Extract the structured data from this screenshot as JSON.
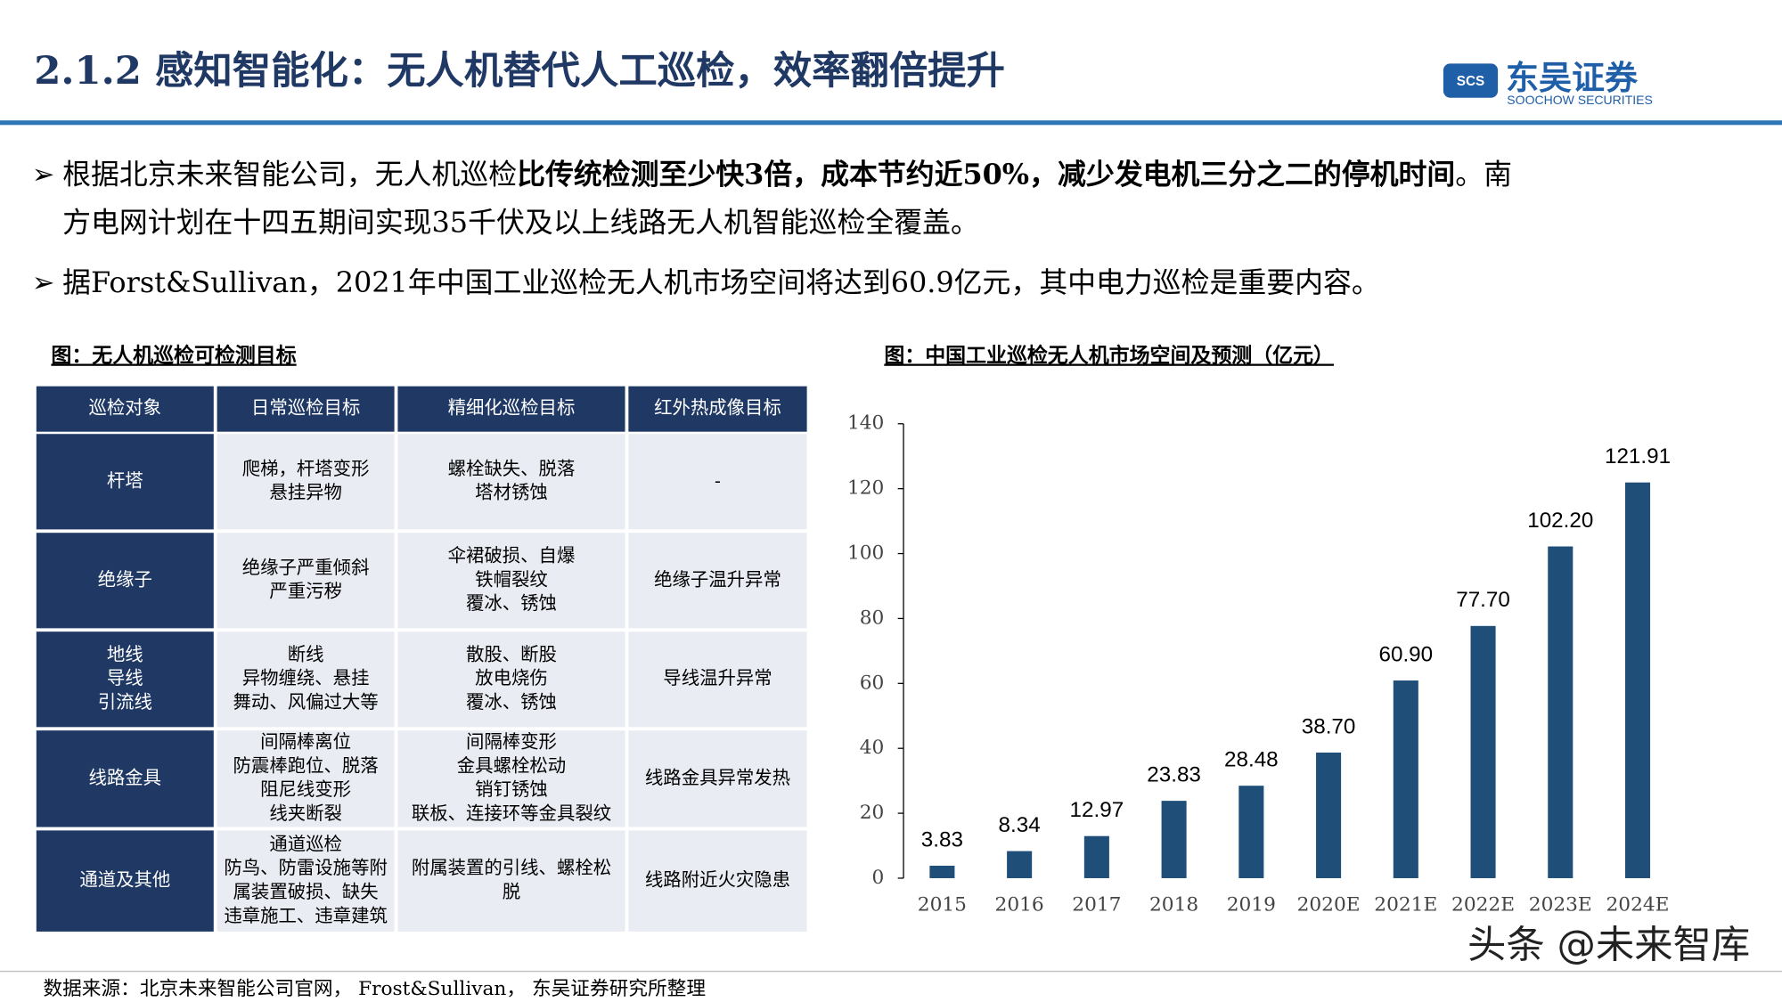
{
  "header": {
    "title": "2.1.2 感知智能化：无人机替代人工巡检，效率翻倍提升"
  },
  "logo": {
    "icon": "SCS",
    "name": "东吴证券",
    "english": "SOOCHOW SECURITIES"
  },
  "bullets": [
    {
      "lines": [
        [
          {
            "text": "根据北京未来智能公司，无人机巡检",
            "bold": false
          },
          {
            "text": "比传统检测至少快3倍，成本节约近50%，减少发电机三分之二的停机时间",
            "bold": true
          },
          {
            "text": "。南",
            "bold": false
          }
        ],
        [
          {
            "text": "方电网计划在十四五期间实现35千伏及以上线路无人机智能巡检全覆盖。",
            "bold": false
          }
        ]
      ]
    },
    {
      "lines": [
        [
          {
            "text": "据Forst&Sullivan，2021年中国工业巡检无人机市场空间将达到60.9亿元，其中电力巡检是重要内容。",
            "bold": false
          }
        ]
      ]
    }
  ],
  "table": {
    "title": "图：无人机巡检可检测目标",
    "header": [
      "巡检对象",
      "日常巡检目标",
      "精细化巡检目标",
      "红外热成像目标"
    ],
    "rows": [
      [
        [
          "杆塔"
        ],
        [
          "爬梯，杆塔变形",
          "悬挂异物"
        ],
        [
          "螺栓缺失、脱落",
          "塔材锈蚀"
        ],
        [
          "-"
        ]
      ],
      [
        [
          "绝缘子"
        ],
        [
          "绝缘子严重倾斜",
          "严重污秽"
        ],
        [
          "伞裙破损、自爆",
          "铁帽裂纹",
          "覆冰、锈蚀"
        ],
        [
          "绝缘子温升异常"
        ]
      ],
      [
        [
          "地线",
          "导线",
          "引流线"
        ],
        [
          "断线",
          "异物缠绕、悬挂",
          "舞动、风偏过大等"
        ],
        [
          "散股、断股",
          "放电烧伤",
          "覆冰、锈蚀"
        ],
        [
          "导线温升异常"
        ]
      ],
      [
        [
          "线路金具"
        ],
        [
          "间隔棒离位",
          "防震棒跑位、脱落",
          "阻尼线变形",
          "线夹断裂"
        ],
        [
          "间隔棒变形",
          "金具螺栓松动",
          "销钉锈蚀",
          "联板、连接环等金具裂纹"
        ],
        [
          "线路金具异常发热"
        ]
      ],
      [
        [
          "通道及其他"
        ],
        [
          "通道巡检",
          "防鸟、防雷设施等附",
          "属装置破损、缺失",
          "违章施工、违章建筑"
        ],
        [
          "附属装置的引线、螺栓松",
          "脱"
        ],
        [
          "线路附近火灾隐患"
        ]
      ]
    ]
  },
  "chart": {
    "type": "bar",
    "title": "图：中国工业巡检无人机市场空间及预测（亿元）",
    "categories": [
      "2015",
      "2016",
      "2017",
      "2018",
      "2019",
      "2020E",
      "2021E",
      "2022E",
      "2023E",
      "2024E"
    ],
    "values": [
      3.83,
      8.34,
      12.97,
      23.83,
      28.48,
      38.7,
      60.9,
      77.7,
      102.2,
      121.91
    ],
    "value_labels": [
      "3.83",
      "8.34",
      "12.97",
      "23.83",
      "28.48",
      "38.70",
      "60.90",
      "77.70",
      "102.20",
      "121.91"
    ],
    "color": "#1f4e79",
    "ylim": [
      0,
      140
    ],
    "yticks": [
      0,
      20,
      40,
      60,
      80,
      100,
      120,
      140
    ]
  },
  "source": "数据来源：北京未来智能公司官网， Frost&Sullivan， 东吴证券研究所整理",
  "watermark": "头条 @未来智库"
}
